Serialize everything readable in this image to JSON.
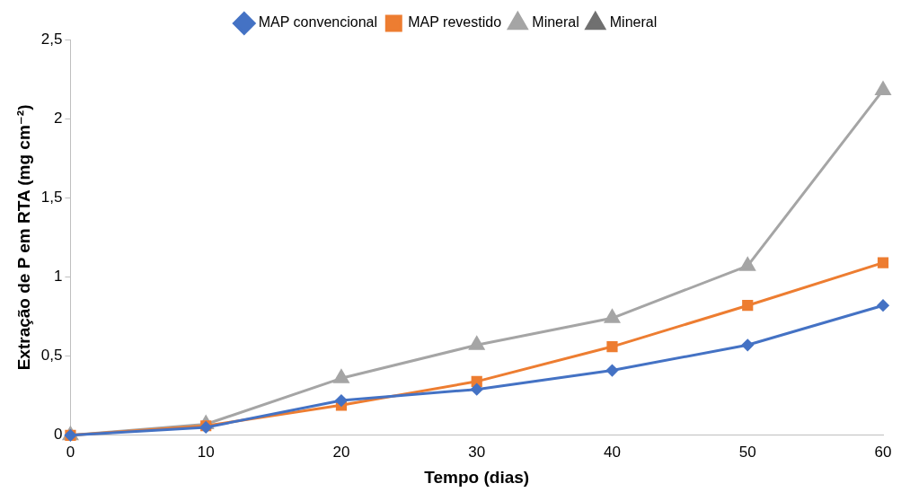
{
  "chart_data": {
    "type": "line",
    "xlabel": "Tempo (dias)",
    "ylabel": "Extração de P em RTA (mg cm⁻²)",
    "x": [
      0,
      10,
      20,
      30,
      40,
      50,
      60
    ],
    "series": [
      {
        "name": "MAP convencional",
        "color": "#4472c4",
        "marker": "diamond",
        "values": [
          0,
          0.05,
          0.22,
          0.29,
          0.41,
          0.57,
          0.82
        ]
      },
      {
        "name": "MAP revestido",
        "color": "#ed7d31",
        "marker": "square",
        "values": [
          0,
          0.06,
          0.19,
          0.34,
          0.56,
          0.82,
          1.09
        ]
      },
      {
        "name": "Mineral",
        "color": "#a5a5a5",
        "marker": "triangle",
        "values": [
          0,
          0.07,
          0.36,
          0.57,
          0.74,
          1.07,
          2.18
        ]
      },
      {
        "name": "Mineral",
        "color": "#707070",
        "marker": "triangle",
        "values": [
          null,
          null,
          null,
          null,
          null,
          null,
          null
        ]
      }
    ],
    "xlim": [
      0,
      60
    ],
    "xticks": [
      0,
      10,
      20,
      30,
      40,
      50,
      60
    ],
    "ylim": [
      0,
      2.5
    ],
    "yticks": [
      {
        "value": 0,
        "label": "0"
      },
      {
        "value": 0.5,
        "label": "0,5"
      },
      {
        "value": 1,
        "label": "1"
      },
      {
        "value": 1.5,
        "label": "1,5"
      },
      {
        "value": 2,
        "label": "2"
      },
      {
        "value": 2.5,
        "label": "2,5"
      }
    ],
    "grid": false,
    "legend": "top"
  }
}
